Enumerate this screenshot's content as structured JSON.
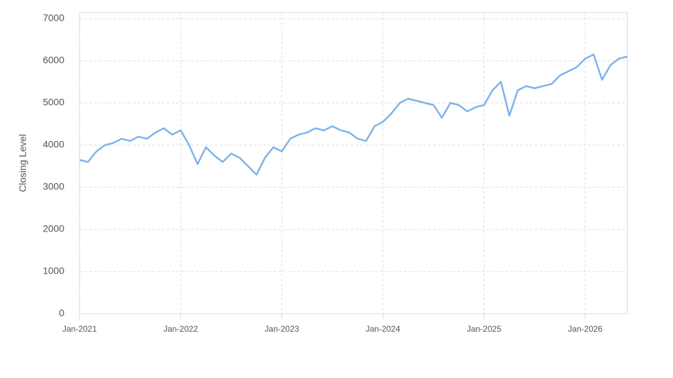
{
  "chart_data": {
    "type": "line",
    "y_label": "Closing Level",
    "x": [
      "2021-01",
      "2021-02",
      "2021-03",
      "2021-04",
      "2021-05",
      "2021-06",
      "2021-07",
      "2021-08",
      "2021-09",
      "2021-10",
      "2021-11",
      "2021-12",
      "2022-01",
      "2022-02",
      "2022-03",
      "2022-04",
      "2022-05",
      "2022-06",
      "2022-07",
      "2022-08",
      "2022-09",
      "2022-10",
      "2022-11",
      "2022-12",
      "2023-01",
      "2023-02",
      "2023-03",
      "2023-04",
      "2023-05",
      "2023-06",
      "2023-07",
      "2023-08",
      "2023-09",
      "2023-10",
      "2023-11",
      "2023-12",
      "2024-01",
      "2024-02",
      "2024-03",
      "2024-04",
      "2024-05",
      "2024-06",
      "2024-07",
      "2024-08",
      "2024-09",
      "2024-10",
      "2024-11",
      "2024-12",
      "2025-01",
      "2025-02",
      "2025-03",
      "2025-04",
      "2025-05",
      "2025-06",
      "2025-07",
      "2025-08",
      "2025-09",
      "2025-10",
      "2025-11",
      "2025-12",
      "2026-01",
      "2026-02",
      "2026-03",
      "2026-04",
      "2026-05",
      "2026-06"
    ],
    "series": [
      {
        "name": "Closing Level",
        "color": "#7db3e8",
        "values": [
          3650,
          3600,
          3850,
          4000,
          4050,
          4150,
          4100,
          4200,
          4150,
          4300,
          4400,
          4250,
          4350,
          4000,
          3550,
          3950,
          3750,
          3600,
          3800,
          3700,
          3500,
          3300,
          3700,
          3950,
          3850,
          4150,
          4250,
          4300,
          4400,
          4350,
          4450,
          4350,
          4300,
          4150,
          4100,
          4450,
          4550,
          4750,
          5000,
          5100,
          5050,
          5000,
          4950,
          4650,
          5000,
          4950,
          4800,
          4900,
          4950,
          5300,
          5500,
          4700,
          5300,
          5400,
          5350,
          5400,
          5450,
          5650,
          5750,
          5850,
          6050,
          6150,
          5550,
          5900,
          6050,
          6100
        ]
      }
    ],
    "xlim": [
      "2021-01",
      "2026-06"
    ],
    "xticks": [
      {
        "value": "2021-01",
        "label": "Jan-2021"
      },
      {
        "value": "2022-01",
        "label": "Jan-2022"
      },
      {
        "value": "2023-01",
        "label": "Jan-2023"
      },
      {
        "value": "2024-01",
        "label": "Jan-2024"
      },
      {
        "value": "2025-01",
        "label": "Jan-2025"
      },
      {
        "value": "2026-01",
        "label": "Jan-2026"
      }
    ],
    "ylim": [
      0,
      7000
    ],
    "yticks": [
      0,
      1000,
      2000,
      3000,
      4000,
      5000,
      6000,
      7000
    ],
    "grid": true
  }
}
